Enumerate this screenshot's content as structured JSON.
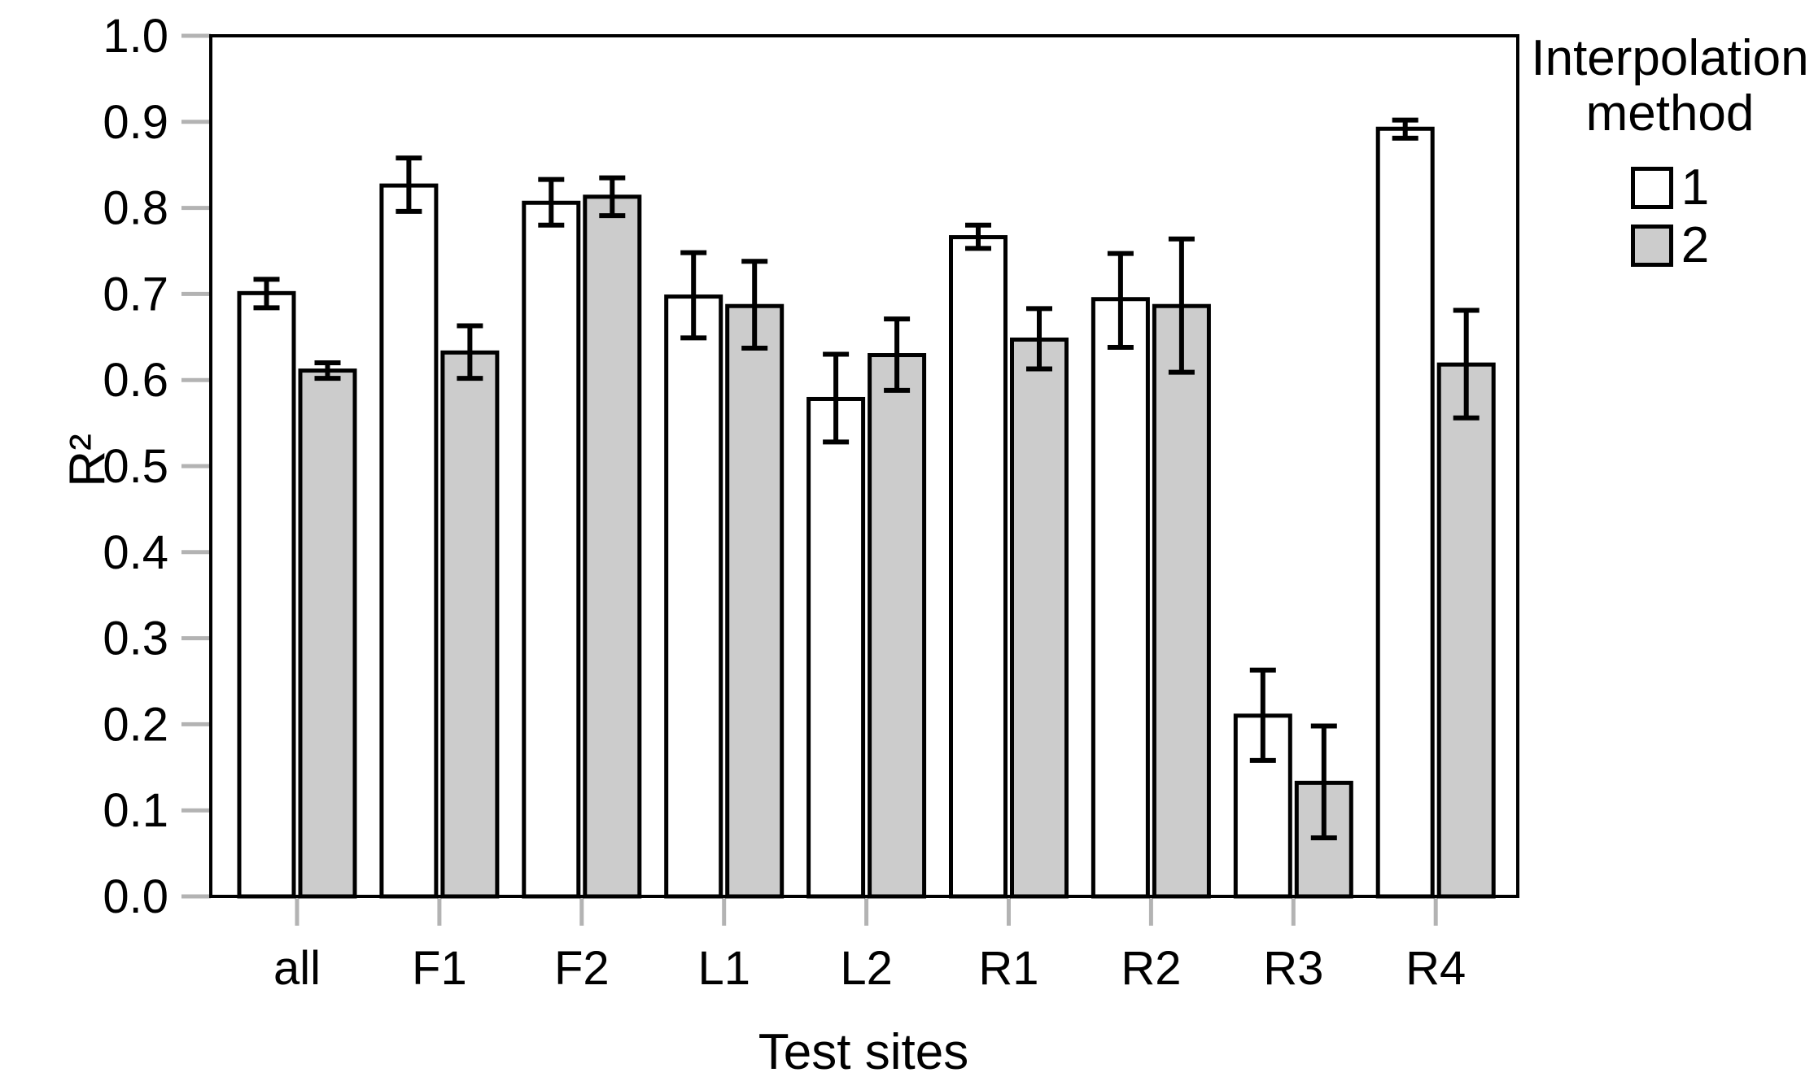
{
  "chart_data": {
    "type": "bar",
    "title": "",
    "xlabel": "Test sites",
    "ylabel": "R²",
    "ylim": [
      0.0,
      1.0
    ],
    "ytick_labels": [
      "0.0",
      "0.1",
      "0.2",
      "0.3",
      "0.4",
      "0.5",
      "0.6",
      "0.7",
      "0.8",
      "0.9",
      "1.0"
    ],
    "grid": "off",
    "error_bars": true,
    "categories": [
      "all",
      "F1",
      "F2",
      "L1",
      "L2",
      "R1",
      "R2",
      "R3",
      "R4"
    ],
    "series": [
      {
        "name": "1",
        "color": "#ffffff",
        "values": [
          0.701,
          0.826,
          0.806,
          0.697,
          0.578,
          0.766,
          0.694,
          0.21,
          0.892
        ],
        "error_low": [
          0.684,
          0.796,
          0.78,
          0.649,
          0.528,
          0.753,
          0.638,
          0.158,
          0.881
        ],
        "error_high": [
          0.717,
          0.858,
          0.833,
          0.748,
          0.63,
          0.78,
          0.747,
          0.263,
          0.902
        ]
      },
      {
        "name": "2",
        "color": "#cccccc",
        "values": [
          0.611,
          0.632,
          0.813,
          0.686,
          0.629,
          0.647,
          0.686,
          0.132,
          0.618
        ],
        "error_low": [
          0.602,
          0.602,
          0.791,
          0.637,
          0.588,
          0.613,
          0.609,
          0.068,
          0.556
        ],
        "error_high": [
          0.62,
          0.663,
          0.835,
          0.738,
          0.671,
          0.683,
          0.764,
          0.198,
          0.681
        ]
      }
    ],
    "legend": {
      "title": "Interpolation method",
      "position": "right-top",
      "entries": [
        {
          "label": "1",
          "color": "#ffffff"
        },
        {
          "label": "2",
          "color": "#cccccc"
        }
      ]
    },
    "colors": {
      "bar_border": "#000000",
      "error_bar": "#000000",
      "axis_frame": "#000000",
      "tick": "#b3b3b3",
      "text": "#000000",
      "background": "#ffffff"
    }
  }
}
